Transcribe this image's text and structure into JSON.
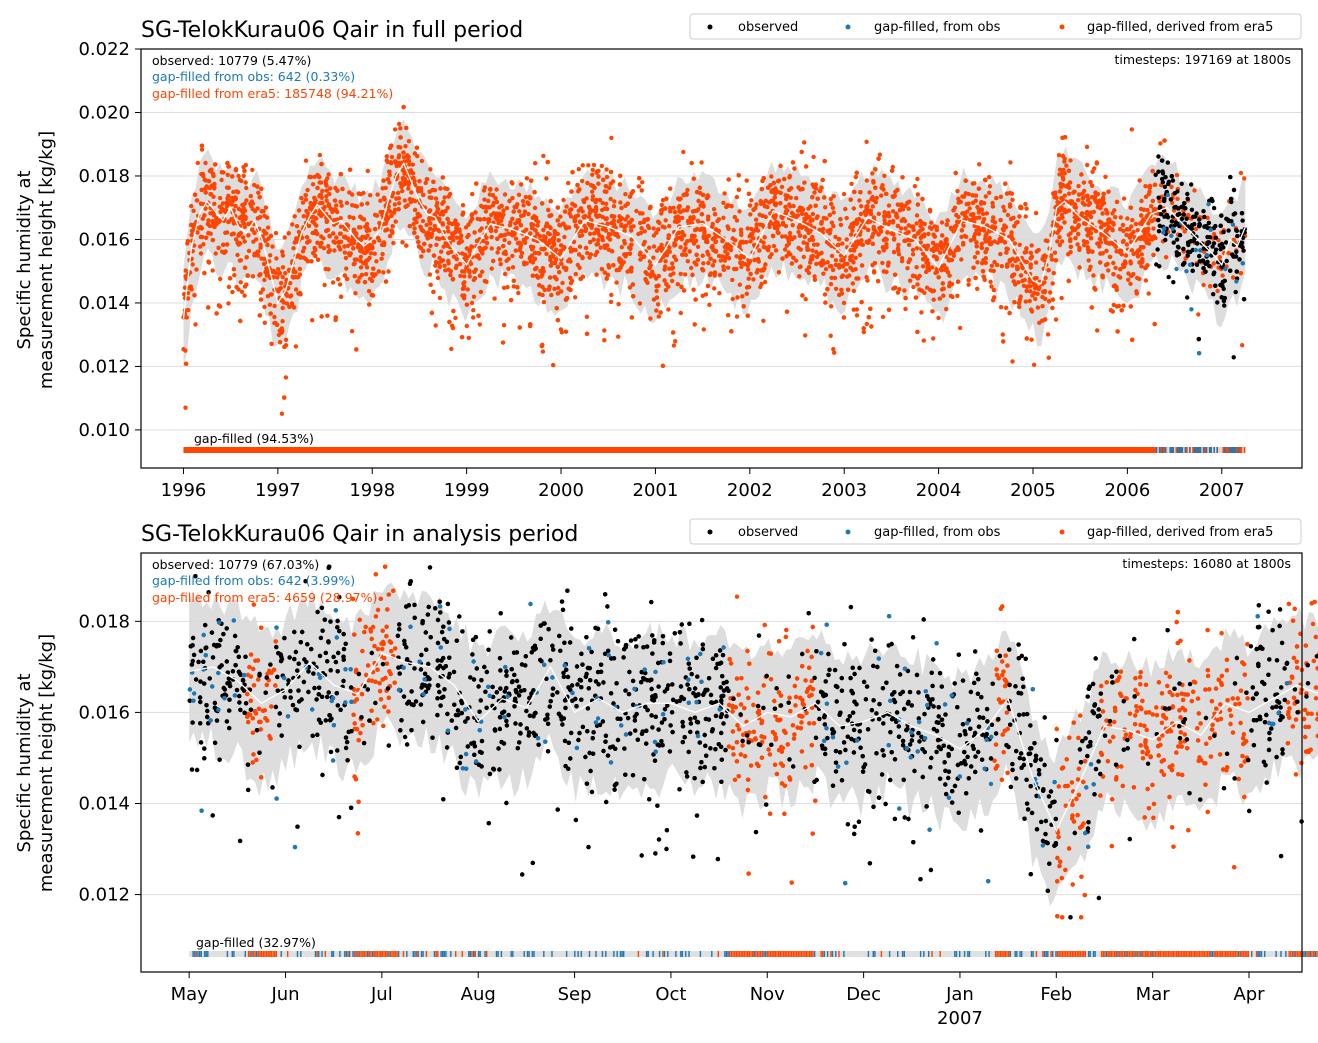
{
  "colors": {
    "observed": "#000000",
    "gapfilled_obs": "#1f77b4",
    "gapfilled_era5": "#ff4500",
    "mean_line": "#ffffff",
    "band": "#d9d9d9",
    "grid": "#dddddd"
  },
  "legend_labels": [
    "observed",
    "gap-filled, from obs",
    "gap-filled, derived from era5"
  ],
  "chart_data": [
    {
      "type": "scatter",
      "title": "SG-TelokKurau06 Qair in full period",
      "ylabel": "Specific humidity at measurement height [kg/kg]",
      "ylabel_lines": [
        "Specific humidity at",
        "measurement height [kg/kg]"
      ],
      "xlabel": "",
      "x_range": [
        1995.55,
        2007.85
      ],
      "ylim": [
        0.0088,
        0.022
      ],
      "yticks": [
        0.01,
        0.012,
        0.014,
        0.016,
        0.018,
        0.02,
        0.022
      ],
      "ytick_labels": [
        "0.010",
        "0.012",
        "0.014",
        "0.016",
        "0.018",
        "0.020",
        "0.022"
      ],
      "xticks": [
        1996,
        1997,
        1998,
        1999,
        2000,
        2001,
        2002,
        2003,
        2004,
        2005,
        2006,
        2007
      ],
      "xtick_labels": [
        "1996",
        "1997",
        "1998",
        "1999",
        "2000",
        "2001",
        "2002",
        "2003",
        "2004",
        "2005",
        "2006",
        "2007"
      ],
      "xtick_sublabel": "",
      "grid": true,
      "legend_position": "top-right",
      "stats": {
        "observed": "observed: 10779 (5.47%)",
        "gapfilled_obs": "gap-filled from obs: 642 (0.33%)",
        "gapfilled_era5": "gap-filled from era5: 185748 (94.21%)",
        "timesteps": "timesteps: 197169 at 1800s",
        "gap_label": "gap-filled (94.53%)"
      },
      "series": [
        {
          "name": "observed",
          "color": "#000000"
        },
        {
          "name": "gap-filled, from obs",
          "color": "#1f77b4"
        },
        {
          "name": "gap-filled, derived from era5",
          "color": "#ff4500"
        }
      ],
      "monthly_mean": {
        "x": [
          1996.0,
          1996.083,
          1996.167,
          1996.25,
          1996.333,
          1996.417,
          1996.5,
          1996.583,
          1996.667,
          1996.75,
          1996.833,
          1996.917,
          1997.0,
          1997.083,
          1997.167,
          1997.25,
          1997.333,
          1997.417,
          1997.5,
          1997.583,
          1997.667,
          1997.75,
          1997.833,
          1997.917,
          1998.0,
          1998.083,
          1998.167,
          1998.25,
          1998.333,
          1998.417,
          1998.5,
          1998.583,
          1998.667,
          1998.75,
          1998.833,
          1998.917,
          1999.0,
          1999.25,
          1999.5,
          1999.75,
          2000.0,
          2000.25,
          2000.5,
          2000.75,
          2001.0,
          2001.25,
          2001.5,
          2001.75,
          2002.0,
          2002.25,
          2002.5,
          2002.75,
          2003.0,
          2003.25,
          2003.5,
          2003.75,
          2004.0,
          2004.25,
          2004.5,
          2004.75,
          2005.0,
          2005.083,
          2005.167,
          2005.25,
          2005.333,
          2005.5,
          2005.75,
          2006.0,
          2006.25,
          2006.417,
          2006.583,
          2006.75,
          2006.917,
          2007.0,
          2007.083,
          2007.167,
          2007.25
        ],
        "values": [
          0.0135,
          0.0157,
          0.0168,
          0.0172,
          0.0169,
          0.0166,
          0.017,
          0.0164,
          0.0162,
          0.0166,
          0.016,
          0.015,
          0.014,
          0.0144,
          0.0153,
          0.0162,
          0.0167,
          0.0171,
          0.0168,
          0.0165,
          0.0166,
          0.0163,
          0.016,
          0.0158,
          0.016,
          0.0163,
          0.0172,
          0.018,
          0.0184,
          0.0178,
          0.0172,
          0.0168,
          0.0167,
          0.0162,
          0.0158,
          0.0155,
          0.0152,
          0.0165,
          0.0163,
          0.016,
          0.0154,
          0.0166,
          0.0164,
          0.0161,
          0.0152,
          0.0164,
          0.0165,
          0.016,
          0.0154,
          0.0169,
          0.0166,
          0.0162,
          0.0155,
          0.0167,
          0.0163,
          0.016,
          0.0151,
          0.0166,
          0.0164,
          0.016,
          0.0147,
          0.0146,
          0.0155,
          0.017,
          0.0172,
          0.0167,
          0.0162,
          0.0156,
          0.0168,
          0.017,
          0.0165,
          0.016,
          0.0155,
          0.0152,
          0.016,
          0.0158,
          0.0164
        ]
      }
    },
    {
      "type": "scatter",
      "title": "SG-TelokKurau06 Qair in analysis period",
      "ylabel": "Specific humidity at measurement height [kg/kg]",
      "ylabel_lines": [
        "Specific humidity at",
        "measurement height [kg/kg]"
      ],
      "xlabel": "",
      "x_range": [
        -0.5,
        11.55
      ],
      "ylim": [
        0.0103,
        0.0195
      ],
      "yticks": [
        0.012,
        0.014,
        0.016,
        0.018
      ],
      "ytick_labels": [
        "0.012",
        "0.014",
        "0.016",
        "0.018"
      ],
      "xticks": [
        0,
        1,
        2,
        3,
        4,
        5,
        6,
        7,
        8,
        9,
        10,
        11
      ],
      "xtick_labels": [
        "May",
        "Jun",
        "Jul",
        "Aug",
        "Sep",
        "Oct",
        "Nov",
        "Dec",
        "Jan",
        "Feb",
        "Mar",
        "Apr"
      ],
      "xtick_sublabel": "2007",
      "grid": true,
      "legend_position": "top-right",
      "stats": {
        "observed": "observed: 10779 (67.03%)",
        "gapfilled_obs": "gap-filled from obs: 642 (3.99%)",
        "gapfilled_era5": "gap-filled from era5: 4659 (28.97%)",
        "timesteps": "timesteps: 16080 at 1800s",
        "gap_label": "gap-filled (32.97%)"
      },
      "series": [
        {
          "name": "observed",
          "color": "#000000"
        },
        {
          "name": "gap-filled, from obs",
          "color": "#1f77b4"
        },
        {
          "name": "gap-filled, derived from era5",
          "color": "#ff4500"
        }
      ],
      "era5_segments": [
        [
          0.6,
          0.9
        ],
        [
          1.7,
          2.15
        ],
        [
          5.6,
          6.5
        ],
        [
          8.35,
          8.5
        ],
        [
          9.0,
          9.3
        ],
        [
          9.45,
          11.0
        ],
        [
          11.4,
          11.95
        ]
      ],
      "monthly_mean": {
        "x": [
          0.0,
          0.25,
          0.5,
          0.75,
          1.0,
          1.25,
          1.5,
          1.75,
          2.0,
          2.25,
          2.5,
          2.75,
          3.0,
          3.25,
          3.5,
          3.75,
          4.0,
          4.25,
          4.5,
          4.75,
          5.0,
          5.25,
          5.5,
          5.75,
          6.0,
          6.25,
          6.5,
          6.75,
          7.0,
          7.25,
          7.5,
          7.75,
          8.0,
          8.25,
          8.5,
          8.75,
          9.0,
          9.25,
          9.5,
          9.75,
          10.0,
          10.25,
          10.5,
          10.75,
          11.0,
          11.25,
          11.5,
          11.85
        ],
        "values": [
          0.0169,
          0.017,
          0.0167,
          0.0162,
          0.0165,
          0.0171,
          0.0166,
          0.0164,
          0.0173,
          0.0171,
          0.017,
          0.0166,
          0.0158,
          0.0163,
          0.0161,
          0.017,
          0.016,
          0.0163,
          0.016,
          0.0162,
          0.0162,
          0.016,
          0.0162,
          0.0157,
          0.016,
          0.0159,
          0.0162,
          0.0157,
          0.0158,
          0.016,
          0.0157,
          0.0155,
          0.0152,
          0.0156,
          0.0163,
          0.0146,
          0.0134,
          0.0145,
          0.0157,
          0.0156,
          0.0154,
          0.0158,
          0.0155,
          0.0162,
          0.016,
          0.0163,
          0.0166,
          0.0163
        ]
      }
    }
  ]
}
